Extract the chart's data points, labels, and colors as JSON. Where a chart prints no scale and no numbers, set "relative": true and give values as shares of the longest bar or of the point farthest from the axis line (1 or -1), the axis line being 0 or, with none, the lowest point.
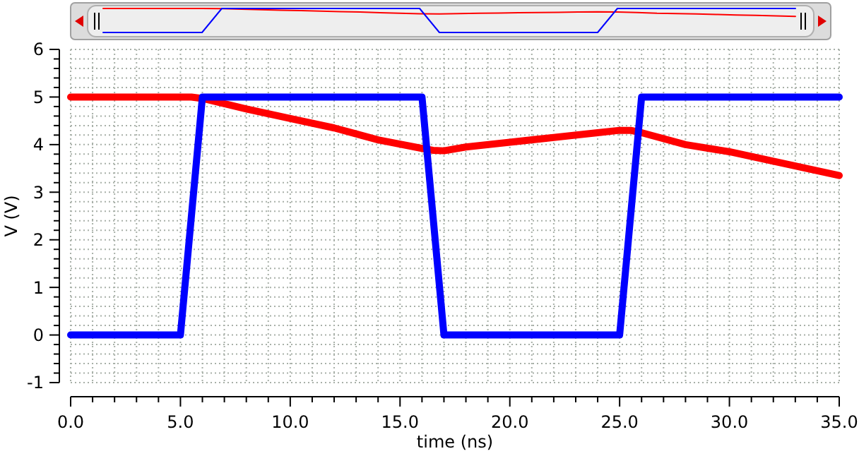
{
  "chart_data": [
    {
      "type": "line",
      "relative": true,
      "marker": "none",
      "line_style": "solid",
      "categories": [
        null,
        null,
        null,
        null,
        null,
        null,
        null,
        null,
        null,
        null,
        null,
        null,
        null,
        null,
        null,
        null,
        null,
        null,
        null,
        null,
        null,
        null,
        null,
        null,
        null,
        null,
        null,
        null,
        null,
        null,
        null,
        null,
        null,
        null,
        null,
        null
      ],
      "series": [
        {
          "color": "#ff0000",
          "values": [
            1,
            1,
            1,
            1,
            1,
            1,
            0.99,
            0.97,
            0.95,
            0.93,
            0.91,
            0.89,
            0.87,
            0.85,
            0.82,
            0.8,
            0.78,
            0.77,
            0.79,
            0.8,
            0.81,
            0.82,
            0.83,
            0.84,
            0.85,
            0.86,
            0.85,
            0.83,
            0.8,
            0.79,
            0.77,
            0.75,
            0.73,
            0.71,
            0.69,
            0.67
          ]
        },
        {
          "color": "#0000ff",
          "values": [
            0,
            0,
            0,
            0,
            0,
            0,
            1,
            1,
            1,
            1,
            1,
            1,
            1,
            1,
            1,
            1,
            1,
            0,
            0,
            0,
            0,
            0,
            0,
            0,
            0,
            0,
            1,
            1,
            1,
            1,
            1,
            1,
            1,
            1,
            1,
            1
          ]
        }
      ]
    },
    {
      "type": "line",
      "xlabel": "time (ns)",
      "ylabel": "V (V)",
      "xlim": [
        0,
        35
      ],
      "ylim": [
        -1,
        6
      ],
      "xticks": [
        {
          "value": 0,
          "label": "0.0"
        },
        {
          "value": 1,
          "label": null
        },
        {
          "value": 2,
          "label": null
        },
        {
          "value": 3,
          "label": null
        },
        {
          "value": 4,
          "label": null
        },
        {
          "value": 5,
          "label": "5.0"
        },
        {
          "value": 6,
          "label": null
        },
        {
          "value": 7,
          "label": null
        },
        {
          "value": 8,
          "label": null
        },
        {
          "value": 9,
          "label": null
        },
        {
          "value": 10,
          "label": "10.0"
        },
        {
          "value": 11,
          "label": null
        },
        {
          "value": 12,
          "label": null
        },
        {
          "value": 13,
          "label": null
        },
        {
          "value": 14,
          "label": null
        },
        {
          "value": 15,
          "label": "15.0"
        },
        {
          "value": 16,
          "label": null
        },
        {
          "value": 17,
          "label": null
        },
        {
          "value": 18,
          "label": null
        },
        {
          "value": 19,
          "label": null
        },
        {
          "value": 20,
          "label": "20.0"
        },
        {
          "value": 21,
          "label": null
        },
        {
          "value": 22,
          "label": null
        },
        {
          "value": 23,
          "label": null
        },
        {
          "value": 24,
          "label": null
        },
        {
          "value": 25,
          "label": "25.0"
        },
        {
          "value": 26,
          "label": null
        },
        {
          "value": 27,
          "label": null
        },
        {
          "value": 28,
          "label": null
        },
        {
          "value": 29,
          "label": null
        },
        {
          "value": 30,
          "label": "30.0"
        },
        {
          "value": 31,
          "label": null
        },
        {
          "value": 32,
          "label": null
        },
        {
          "value": 33,
          "label": null
        },
        {
          "value": 34,
          "label": null
        },
        {
          "value": 35,
          "label": "35.0"
        }
      ],
      "yticks": [
        -1,
        {
          "value": -0.8,
          "label": null
        },
        {
          "value": -0.6,
          "label": null
        },
        {
          "value": -0.4,
          "label": null
        },
        {
          "value": -0.2,
          "label": null
        },
        0,
        {
          "value": 0.2,
          "label": null
        },
        {
          "value": 0.4,
          "label": null
        },
        {
          "value": 0.6,
          "label": null
        },
        {
          "value": 0.8,
          "label": null
        },
        1,
        {
          "value": 1.2,
          "label": null
        },
        {
          "value": 1.4,
          "label": null
        },
        {
          "value": 1.6,
          "label": null
        },
        {
          "value": 1.8,
          "label": null
        },
        2,
        {
          "value": 2.2,
          "label": null
        },
        {
          "value": 2.4,
          "label": null
        },
        {
          "value": 2.6,
          "label": null
        },
        {
          "value": 2.8,
          "label": null
        },
        3,
        {
          "value": 3.2,
          "label": null
        },
        {
          "value": 3.4,
          "label": null
        },
        {
          "value": 3.6,
          "label": null
        },
        {
          "value": 3.8,
          "label": null
        },
        4,
        {
          "value": 4.2,
          "label": null
        },
        {
          "value": 4.4,
          "label": null
        },
        {
          "value": 4.6,
          "label": null
        },
        {
          "value": 4.8,
          "label": null
        },
        5,
        {
          "value": 5.2,
          "label": null
        },
        {
          "value": 5.4,
          "label": null
        },
        {
          "value": 5.6,
          "label": null
        },
        {
          "value": 5.8,
          "label": null
        },
        6
      ],
      "grid": true,
      "marker": "none",
      "line_style": "solid",
      "series": [
        {
          "color": "#ff0000",
          "x": [
            0,
            5.5,
            6,
            8,
            10,
            12,
            14,
            16,
            16.5,
            17,
            18,
            20,
            22,
            24,
            25,
            25.5,
            26,
            28,
            30,
            32,
            34,
            35
          ],
          "values": [
            5,
            5,
            4.97,
            4.75,
            4.55,
            4.35,
            4.1,
            3.92,
            3.88,
            3.87,
            3.95,
            4.05,
            4.15,
            4.25,
            4.3,
            4.3,
            4.25,
            4.0,
            3.85,
            3.65,
            3.45,
            3.35
          ]
        },
        {
          "color": "#0000ff",
          "x": [
            0,
            5,
            6,
            16,
            17,
            25,
            26,
            35
          ],
          "values": [
            0,
            0,
            5,
            5,
            0,
            0,
            5,
            5
          ]
        }
      ]
    }
  ]
}
